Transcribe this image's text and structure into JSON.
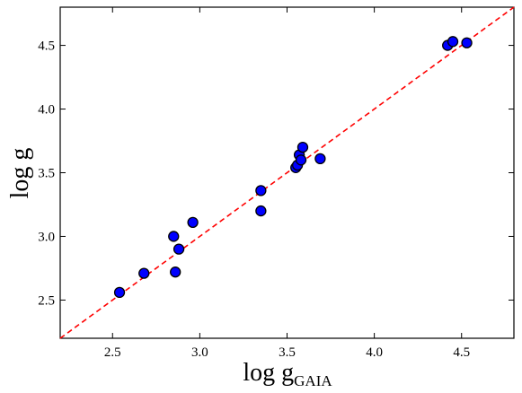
{
  "chart_data": {
    "type": "scatter",
    "title": "",
    "xlabel": "log g",
    "xlabel_subscript": "GAIA",
    "ylabel": "log g",
    "xlim": [
      2.2,
      4.8
    ],
    "ylim": [
      2.2,
      4.8
    ],
    "xticks": [
      2.5,
      3.0,
      3.5,
      4.0,
      4.5
    ],
    "yticks": [
      2.5,
      3.0,
      3.5,
      4.0,
      4.5
    ],
    "xtick_labels": [
      "2.5",
      "3.0",
      "3.5",
      "4.0",
      "4.5"
    ],
    "ytick_labels": [
      "2.5",
      "3.0",
      "3.5",
      "4.0",
      "4.5"
    ],
    "grid": false,
    "reference_line": {
      "style": "dashed",
      "color": "#ff0000",
      "relation": "y = x"
    },
    "marker_fill": "#0000ff",
    "marker_edge": "#000000",
    "points": [
      {
        "x": 2.54,
        "y": 2.56
      },
      {
        "x": 2.68,
        "y": 2.71
      },
      {
        "x": 2.85,
        "y": 3.0
      },
      {
        "x": 2.86,
        "y": 2.72
      },
      {
        "x": 2.88,
        "y": 2.9
      },
      {
        "x": 2.96,
        "y": 3.11
      },
      {
        "x": 3.35,
        "y": 3.36
      },
      {
        "x": 3.35,
        "y": 3.2
      },
      {
        "x": 3.55,
        "y": 3.54
      },
      {
        "x": 3.56,
        "y": 3.56
      },
      {
        "x": 3.57,
        "y": 3.64
      },
      {
        "x": 3.58,
        "y": 3.6
      },
      {
        "x": 3.59,
        "y": 3.7
      },
      {
        "x": 3.69,
        "y": 3.61
      },
      {
        "x": 4.42,
        "y": 4.5
      },
      {
        "x": 4.45,
        "y": 4.53
      },
      {
        "x": 4.53,
        "y": 4.52
      }
    ]
  }
}
